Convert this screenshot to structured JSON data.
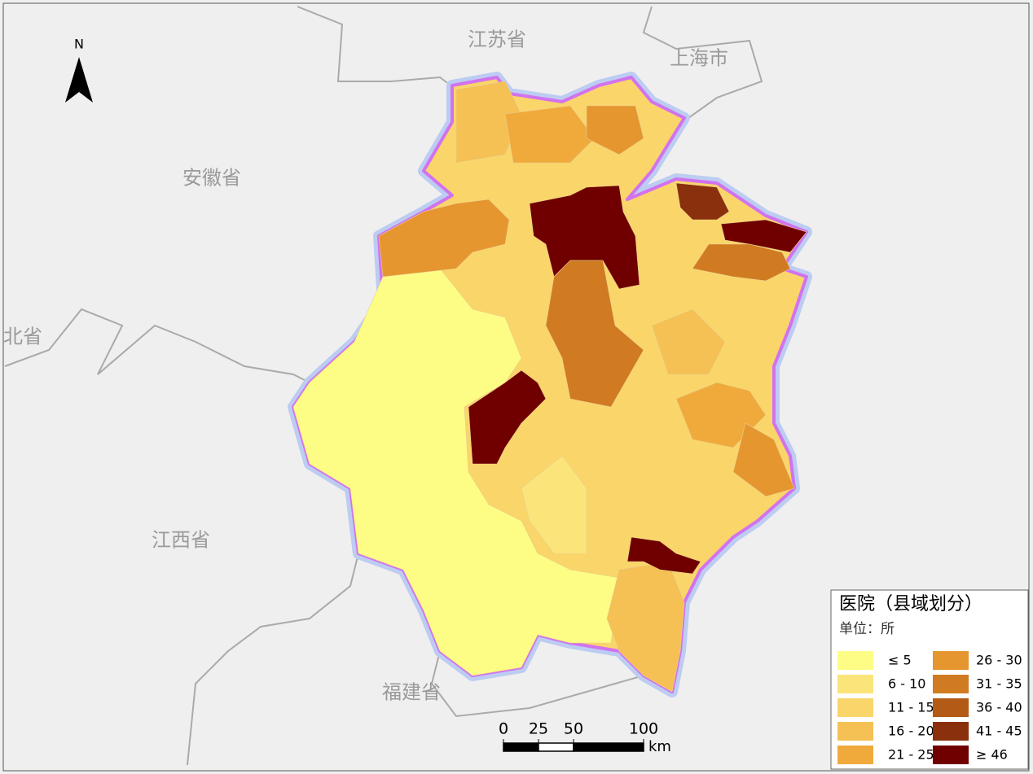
{
  "north_arrow": {
    "label": "N"
  },
  "place_labels": [
    "江苏省",
    "上海市",
    "安徽省",
    "北省",
    "江西省",
    "福建省"
  ],
  "legend": {
    "title": "医院（县域划分）",
    "unit": "单位：所",
    "classes": [
      {
        "label": "≤ 5",
        "color": "#fdfd86"
      },
      {
        "label": "6 - 10",
        "color": "#fbe57a"
      },
      {
        "label": "11 - 15",
        "color": "#fad56a"
      },
      {
        "label": "16 - 20",
        "color": "#f5c154"
      },
      {
        "label": "21 - 25",
        "color": "#f0aa3c"
      },
      {
        "label": "26 - 30",
        "color": "#e6962f"
      },
      {
        "label": "31 - 35",
        "color": "#d07a22"
      },
      {
        "label": "36 - 40",
        "color": "#b45a17"
      },
      {
        "label": "41 - 45",
        "color": "#8a300c"
      },
      {
        "label": "≥ 46",
        "color": "#700000"
      }
    ]
  },
  "scale_bar": {
    "ticks": [
      0,
      25,
      50,
      100
    ],
    "unit": "km"
  }
}
